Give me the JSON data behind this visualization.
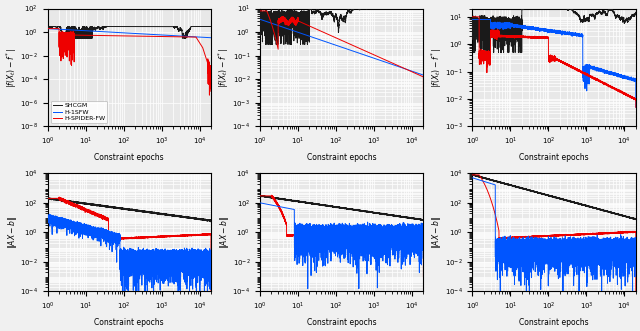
{
  "colors": {
    "black": "#1a1a1a",
    "blue": "#0055ff",
    "red": "#ee0000"
  },
  "legend_labels": [
    "SHCGM",
    "H-1SFW",
    "H-SPIDER-FW"
  ],
  "xlabel": "Constraint epochs",
  "background_color": "#e8e8e8",
  "grid_color": "#ffffff",
  "linewidth": 0.7
}
